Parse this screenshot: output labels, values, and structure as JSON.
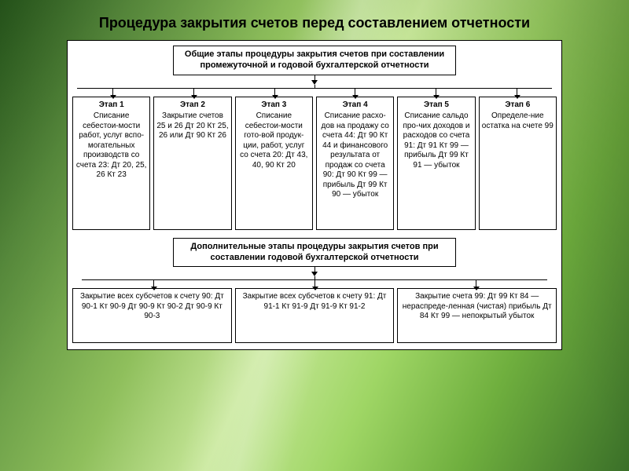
{
  "colors": {
    "bg_white": "#ffffff",
    "line": "#000000",
    "text": "#000000"
  },
  "title": "Процедура закрытия счетов перед составлением отчетности",
  "header1": "Общие этапы процедуры закрытия счетов при составлении промежуточной и годовой бухгалтерской отчетности",
  "stages": [
    {
      "title": "Этап 1",
      "text": "Списание себестои-мости работ, услуг вспо-могательных производств со счета 23: Дт 20, 25, 26 Кт 23"
    },
    {
      "title": "Этап 2",
      "text": "Закрытие счетов 25 и 26 Дт 20 Кт 25, 26 или Дт 90 Кт 26"
    },
    {
      "title": "Этап 3",
      "text": "Списание себестои-мости гото-вой продук-ции, работ, услуг со счета 20: Дт 43, 40, 90 Кт 20"
    },
    {
      "title": "Этап 4",
      "text": "Списание расхо-дов на продажу со счета 44: Дт 90 Кт 44 и финансового результата от продаж со счета 90: Дт 90 Кт 99 — прибыль Дт 99 Кт 90 — убыток"
    },
    {
      "title": "Этап 5",
      "text": "Списание сальдо про-чих доходов и расходов со счета 91: Дт 91 Кт 99 — прибыль Дт 99 Кт 91 — убыток"
    },
    {
      "title": "Этап 6",
      "text": "Определе-ние остатка на счете 99"
    }
  ],
  "header2": "Дополнительные этапы процедуры закрытия счетов при составлении годовой бухгалтерской отчетности",
  "extra": [
    "Закрытие всех субсчетов к счету 90: Дт 90-1 Кт 90-9 Дт 90-9 Кт 90-2 Дт 90-9 Кт 90-3",
    "Закрытие всех субсчетов к счету 91: Дт 91-1 Кт 91-9 Дт 91-9 Кт 91-2",
    "Закрытие счета 99: Дт 99 Кт 84 — нераспреде-ленная (чистая) прибыль Дт 84 Кт 99 — непокрытый убыток"
  ],
  "layout": {
    "diagram_width": 630,
    "stage_stem_positions_pct": [
      8.3,
      25,
      41.7,
      58.3,
      75,
      91.7
    ],
    "extra_stem_positions_pct": [
      16.7,
      50,
      83.3
    ]
  }
}
